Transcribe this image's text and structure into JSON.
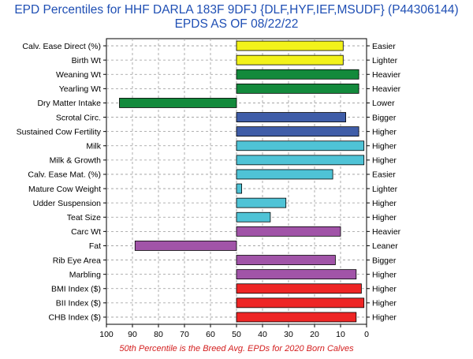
{
  "chart_data": {
    "type": "bar",
    "title": "EPD Percentiles for HHF DARLA 183F 9DFJ {DLF,HYF,IEF,MSUDF} (P44306144)",
    "subtitle": "EPDS AS OF 08/22/22",
    "footnote": "50th Percentile is the Breed Avg. EPDs for 2020 Born Calves",
    "orientation": "horizontal",
    "baseline": 50,
    "xlim": [
      100,
      0
    ],
    "x_ticks": [
      "100",
      "90",
      "80",
      "70",
      "60",
      "50",
      "40",
      "30",
      "20",
      "10",
      "0"
    ],
    "grid": true,
    "categories": [
      "Calv. Ease Direct (%)",
      "Birth Wt",
      "Weaning Wt",
      "Yearling Wt",
      "Dry Matter Intake",
      "Scrotal Circ.",
      "Sustained Cow Fertility",
      "Milk",
      "Milk & Growth",
      "Calv. Ease Mat. (%)",
      "Mature Cow Weight",
      "Udder Suspension",
      "Teat Size",
      "Carc Wt",
      "Fat",
      "Rib Eye Area",
      "Marbling",
      "BMI Index ($)",
      "BII Index ($)",
      "CHB Index ($)"
    ],
    "values": [
      9,
      9,
      3,
      3,
      95,
      8,
      3,
      1,
      1,
      13,
      48,
      31,
      37,
      10,
      89,
      12,
      4,
      2,
      1,
      4
    ],
    "right_labels": [
      "Easier",
      "Lighter",
      "Heavier",
      "Heavier",
      "Lower",
      "Bigger",
      "Higher",
      "Higher",
      "Higher",
      "Easier",
      "Lighter",
      "Higher",
      "Higher",
      "Heavier",
      "Leaner",
      "Bigger",
      "Higher",
      "Higher",
      "Higher",
      "Higher"
    ],
    "colors": [
      "#f2f21a",
      "#f2f21a",
      "#138a3c",
      "#138a3c",
      "#138a3c",
      "#3f5da8",
      "#3f5da8",
      "#4fc3d6",
      "#4fc3d6",
      "#4fc3d6",
      "#4fc3d6",
      "#4fc3d6",
      "#4fc3d6",
      "#a154a8",
      "#a154a8",
      "#a154a8",
      "#a154a8",
      "#ee2525",
      "#ee2525",
      "#ee2525"
    ]
  }
}
